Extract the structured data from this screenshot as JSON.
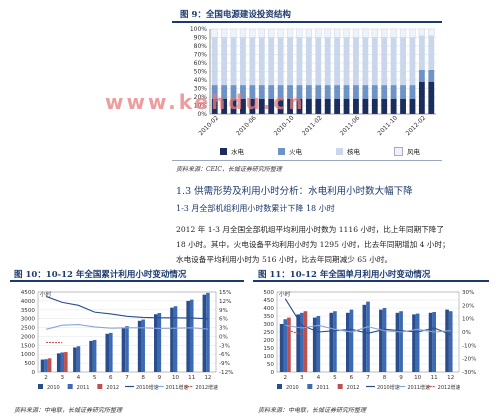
{
  "figure9": {
    "title": "图 9：全国电源建设投资结构",
    "y_ticks": [
      "100%",
      "90%",
      "80%",
      "70%",
      "60%",
      "50%",
      "40%",
      "30%",
      "20%",
      "10%",
      "0%"
    ],
    "x_ticks": [
      "2010-02",
      "2010-06",
      "2010-10",
      "2011-02",
      "2011-06",
      "2011-10",
      "2012-02"
    ],
    "legend": [
      "水电",
      "火电",
      "核电",
      "风电"
    ],
    "source": "资料来源：CEIC，长城证券研究所整理"
  },
  "watermark": "www.kehdu.cn",
  "section": {
    "heading": "1.3  供需形势及利用小时分析：水电利用小时数大幅下降",
    "subheading": "1-3 月全部机组利用小时数累计下降 18 小时",
    "paragraph_lines": [
      "2012 年 1-3 月全国全部机组平均利用小时数为 1116 小时，比上年同期下降了",
      "18 小时。其中，火电设备平均利用小时为 1295 小时，比去年同期增加 4 小时；",
      "水电设备平均利用小时为 516 小时，比去年同期减少 65 小时。"
    ]
  },
  "figure10": {
    "title": "图 10：10-12 年全国累计利用小时变动情况",
    "unit": "小时",
    "y_left": [
      "4500",
      "4000",
      "3500",
      "3000",
      "2500",
      "2000",
      "1500",
      "1000",
      "500",
      "0"
    ],
    "y_right": [
      "15%",
      "12%",
      "9%",
      "6%",
      "3%",
      "0%",
      "-3%",
      "-6%",
      "-9%",
      "-12%"
    ],
    "x_ticks": [
      "2",
      "3",
      "4",
      "5",
      "6",
      "7",
      "8",
      "9",
      "10",
      "11",
      "12"
    ],
    "legend": [
      "2010",
      "2011",
      "2012",
      "2010增速",
      "2011增速",
      "2012增速"
    ],
    "source": "资料来源：中电联，长城证券研究所整理"
  },
  "figure11": {
    "title": "图 11：10-12 年全国单月利用小时变动情况",
    "unit": "小时",
    "y_left": [
      "500",
      "450",
      "400",
      "350",
      "300",
      "250",
      "200",
      "150",
      "100",
      "50",
      "0"
    ],
    "y_right": [
      "30%",
      "20%",
      "10%",
      "0%",
      "-10%",
      "-20%",
      "-30%"
    ],
    "x_ticks": [
      "2",
      "3",
      "4",
      "5",
      "6",
      "7",
      "8",
      "9",
      "10",
      "11",
      "12"
    ],
    "legend": [
      "2010",
      "2011",
      "2012",
      "2010增速",
      "2011增速",
      "2012增速"
    ],
    "source": "资料来源：中电联，长城证券研究所整理"
  },
  "colors": {
    "navy": "#1d3a6b",
    "hydro": "#1b2d5c",
    "thermal": "#6e93c6",
    "nuclear": "#c9d6ec",
    "wind": "#eef2fa",
    "bar2010": "#2a4d8c",
    "bar2011": "#3c6bb4",
    "bar2012": "#c0504d",
    "watermark": "#e77d7d"
  },
  "chart_data": [
    {
      "type": "bar",
      "title": "图 9：全国电源建设投资结构",
      "categories": [
        "2010-02",
        "2010-03",
        "2010-04",
        "2010-05",
        "2010-06",
        "2010-07",
        "2010-08",
        "2010-09",
        "2010-10",
        "2010-11",
        "2010-12",
        "2011-02",
        "2011-03",
        "2011-04",
        "2011-05",
        "2011-06",
        "2011-07",
        "2011-08",
        "2011-09",
        "2011-10",
        "2011-11",
        "2011-12",
        "2012-02",
        "2012-03"
      ],
      "stacked": true,
      "ylim": [
        0,
        100
      ],
      "series": [
        {
          "name": "水电",
          "values": [
            18,
            18,
            18,
            18,
            18,
            18,
            18,
            18,
            18,
            18,
            18,
            18,
            18,
            18,
            18,
            18,
            18,
            18,
            18,
            18,
            18,
            18,
            38,
            38
          ]
        },
        {
          "name": "火电",
          "values": [
            16,
            16,
            16,
            16,
            16,
            16,
            16,
            16,
            16,
            16,
            16,
            16,
            16,
            16,
            16,
            16,
            16,
            16,
            16,
            16,
            16,
            16,
            14,
            14
          ]
        },
        {
          "name": "核电",
          "values": [
            56,
            56,
            56,
            56,
            56,
            56,
            56,
            56,
            56,
            56,
            56,
            56,
            56,
            56,
            56,
            56,
            56,
            56,
            56,
            56,
            56,
            56,
            40,
            40
          ]
        },
        {
          "name": "风电",
          "values": [
            10,
            10,
            10,
            10,
            10,
            10,
            10,
            10,
            10,
            10,
            10,
            10,
            10,
            10,
            10,
            10,
            10,
            10,
            10,
            10,
            10,
            10,
            8,
            8
          ]
        }
      ]
    },
    {
      "type": "bar",
      "title": "图 10：10-12 年全国累计利用小时变动情况",
      "categories": [
        "2",
        "3",
        "4",
        "5",
        "6",
        "7",
        "8",
        "9",
        "10",
        "11",
        "12"
      ],
      "ylim": [
        0,
        4500
      ],
      "y2lim": [
        -12,
        15
      ],
      "series": [
        {
          "name": "2010",
          "values": [
            700,
            1050,
            1380,
            1750,
            2150,
            2500,
            2880,
            3250,
            3620,
            4000,
            4350
          ]
        },
        {
          "name": "2011",
          "values": [
            720,
            1100,
            1450,
            1800,
            2200,
            2580,
            2950,
            3320,
            3700,
            4070,
            4450
          ]
        },
        {
          "name": "2012",
          "values": [
            770,
            1120,
            null,
            null,
            null,
            null,
            null,
            null,
            null,
            null,
            null
          ]
        },
        {
          "name": "2010增速",
          "axis": "right",
          "values": [
            13.5,
            11.5,
            10.5,
            8.2,
            7.6,
            6.8,
            6.4,
            6.3,
            6.3,
            6.2,
            6.0
          ]
        },
        {
          "name": "2011增速",
          "axis": "right",
          "values": [
            2.4,
            3.8,
            4.0,
            3.2,
            2.8,
            2.9,
            2.9,
            2.7,
            2.8,
            2.9,
            2.5
          ]
        },
        {
          "name": "2012增速",
          "axis": "right",
          "values": [
            -2.0,
            -2.1,
            null,
            null,
            null,
            null,
            null,
            null,
            null,
            null,
            null
          ]
        }
      ]
    },
    {
      "type": "bar",
      "title": "图 11：10-12 年全国单月利用小时变动情况",
      "categories": [
        "2",
        "3",
        "4",
        "5",
        "6",
        "7",
        "8",
        "9",
        "10",
        "11",
        "12"
      ],
      "ylim": [
        0,
        500
      ],
      "y2lim": [
        -30,
        30
      ],
      "series": [
        {
          "name": "2010",
          "values": [
            300,
            360,
            340,
            370,
            370,
            420,
            390,
            370,
            360,
            370,
            390
          ]
        },
        {
          "name": "2011",
          "values": [
            330,
            370,
            350,
            380,
            390,
            440,
            400,
            380,
            365,
            375,
            380
          ]
        },
        {
          "name": "2012",
          "values": [
            340,
            380,
            null,
            null,
            null,
            null,
            null,
            null,
            null,
            null,
            null
          ]
        },
        {
          "name": "2010增速",
          "axis": "right",
          "values": [
            25,
            5,
            0,
            1,
            2,
            -1,
            2,
            1,
            0,
            3,
            -2
          ]
        },
        {
          "name": "2011增速",
          "axis": "right",
          "values": [
            5,
            3,
            5,
            2,
            0,
            4,
            1,
            0,
            2,
            0,
            1
          ]
        },
        {
          "name": "2012增速",
          "axis": "right",
          "values": [
            2,
            -2,
            null,
            null,
            null,
            null,
            null,
            null,
            null,
            null,
            null
          ]
        }
      ]
    }
  ]
}
